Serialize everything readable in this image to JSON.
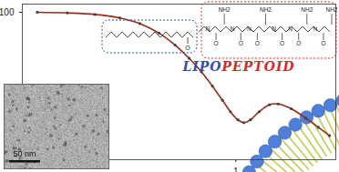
{
  "chart_data": {
    "type": "line",
    "log": true,
    "color": "#9b2a12",
    "marker": "circle",
    "line_style": "solid",
    "x": [
      0.15,
      0.2,
      0.26,
      0.33,
      0.4,
      0.48,
      0.56,
      0.64,
      0.72,
      0.8,
      0.88,
      0.95,
      1.02,
      1.08,
      1.15,
      1.25,
      1.38,
      1.5,
      1.7,
      1.95,
      2.2,
      2.45
    ],
    "values": [
      100,
      96,
      88,
      72,
      52,
      30,
      15,
      7,
      3.2,
      1.4,
      0.62,
      0.32,
      0.2,
      0.17,
      0.2,
      0.32,
      0.48,
      0.5,
      0.38,
      0.22,
      0.13,
      0.08
    ],
    "xlim": [
      0.13,
      2.6
    ],
    "ylim": [
      0.02,
      160
    ],
    "xticks": [
      1
    ],
    "yticks": [
      100
    ],
    "grid": false
  },
  "structure": {
    "title_parts": [
      "LIPO",
      "PEPTOID"
    ],
    "lipid_labels": [
      "O"
    ],
    "peptoid_labels": [
      "N",
      "O",
      "NH2",
      "N",
      "O",
      "N",
      "O",
      "NH2",
      "N",
      "O",
      "N",
      "O",
      "NH2",
      "N",
      "O",
      "NH2"
    ]
  },
  "micrograph": {
    "scale_bar": "50 nm"
  }
}
